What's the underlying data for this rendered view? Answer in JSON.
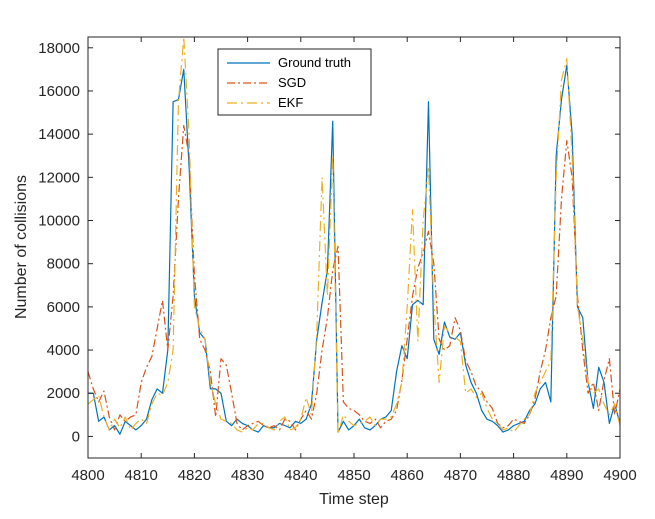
{
  "chart_data": {
    "type": "line",
    "title": "",
    "xlabel": "Time step",
    "ylabel": "Number of collisions",
    "xlim": [
      4800,
      4900
    ],
    "ylim": [
      -1000,
      18500
    ],
    "x_ticks": [
      4800,
      4810,
      4820,
      4830,
      4840,
      4850,
      4860,
      4870,
      4880,
      4890,
      4900
    ],
    "y_ticks": [
      0,
      2000,
      4000,
      6000,
      8000,
      10000,
      12000,
      14000,
      16000,
      18000
    ],
    "x_tick_labels": [
      "4800",
      "4810",
      "4820",
      "4830",
      "4840",
      "4850",
      "4860",
      "4870",
      "4880",
      "4890",
      "4900"
    ],
    "y_tick_labels": [
      "0",
      "2000",
      "4000",
      "6000",
      "8000",
      "10000",
      "12000",
      "14000",
      "16000",
      "18000"
    ],
    "legend_position": "top-center",
    "x": [
      4800,
      4801,
      4802,
      4803,
      4804,
      4805,
      4806,
      4807,
      4808,
      4809,
      4810,
      4811,
      4812,
      4813,
      4814,
      4815,
      4816,
      4817,
      4818,
      4819,
      4820,
      4821,
      4822,
      4823,
      4824,
      4825,
      4826,
      4827,
      4828,
      4829,
      4830,
      4831,
      4832,
      4833,
      4834,
      4835,
      4836,
      4837,
      4838,
      4839,
      4840,
      4841,
      4842,
      4843,
      4844,
      4845,
      4846,
      4847,
      4848,
      4849,
      4850,
      4851,
      4852,
      4853,
      4854,
      4855,
      4856,
      4857,
      4858,
      4859,
      4860,
      4861,
      4862,
      4863,
      4864,
      4865,
      4866,
      4867,
      4868,
      4869,
      4870,
      4871,
      4872,
      4873,
      4874,
      4875,
      4876,
      4877,
      4878,
      4879,
      4880,
      4881,
      4882,
      4883,
      4884,
      4885,
      4886,
      4887,
      4888,
      4889,
      4890,
      4891,
      4892,
      4893,
      4894,
      4895,
      4896,
      4897,
      4898,
      4899,
      4900
    ],
    "series": [
      {
        "name": "Ground truth",
        "color": "#0072BD",
        "dash": "solid",
        "values": [
          2000,
          2000,
          700,
          900,
          300,
          500,
          100,
          700,
          500,
          300,
          500,
          800,
          1700,
          2200,
          2000,
          4000,
          15500,
          15600,
          17000,
          12500,
          6500,
          4800,
          4500,
          2200,
          2200,
          2000,
          700,
          500,
          800,
          600,
          500,
          300,
          200,
          500,
          400,
          400,
          600,
          500,
          400,
          700,
          600,
          800,
          1500,
          4500,
          6200,
          7700,
          14600,
          200,
          700,
          300,
          500,
          800,
          400,
          300,
          500,
          800,
          900,
          1200,
          3000,
          4200,
          3600,
          6100,
          6300,
          6100,
          15500,
          4500,
          3800,
          5300,
          4600,
          4500,
          4800,
          3300,
          2500,
          2000,
          1200,
          800,
          700,
          500,
          200,
          300,
          500,
          600,
          700,
          1200,
          1500,
          2200,
          2500,
          1600,
          13000,
          15600,
          17200,
          14000,
          6000,
          5500,
          2500,
          1300,
          3200,
          2500,
          600,
          1500,
          600
        ]
      },
      {
        "name": "SGD",
        "color": "#D95319",
        "dash": "8,3,2,3",
        "values": [
          3000,
          2200,
          1600,
          2100,
          900,
          300,
          1000,
          700,
          900,
          1000,
          2500,
          3200,
          3700,
          5000,
          6300,
          4000,
          6500,
          11000,
          14400,
          13000,
          7500,
          4500,
          4000,
          3000,
          900,
          3600,
          3300,
          2000,
          600,
          300,
          500,
          600,
          700,
          500,
          400,
          500,
          300,
          800,
          700,
          300,
          800,
          1200,
          800,
          2000,
          4000,
          5500,
          7700,
          8800,
          1600,
          1300,
          1200,
          1000,
          700,
          600,
          800,
          400,
          700,
          800,
          1200,
          2600,
          4500,
          6500,
          7800,
          8500,
          9500,
          8000,
          4500,
          4000,
          4200,
          5500,
          4900,
          3500,
          3000,
          2300,
          2100,
          1600,
          1300,
          600,
          400,
          500,
          800,
          700,
          600,
          1000,
          1700,
          3000,
          4000,
          5500,
          6500,
          11000,
          13700,
          12000,
          6500,
          4000,
          2000,
          2500,
          1200,
          2600,
          3600,
          1000,
          2200
        ]
      },
      {
        "name": "EKF",
        "color": "#EDB120",
        "dash": "10,4,2,4",
        "values": [
          1500,
          1700,
          1900,
          900,
          300,
          800,
          400,
          900,
          300,
          600,
          800,
          600,
          1500,
          2000,
          1900,
          2500,
          4000,
          15500,
          18500,
          14000,
          6000,
          5000,
          4500,
          2500,
          1500,
          800,
          700,
          600,
          300,
          200,
          400,
          300,
          600,
          600,
          400,
          300,
          700,
          900,
          300,
          400,
          800,
          1800,
          1000,
          4800,
          12000,
          6500,
          13000,
          100,
          1000,
          700,
          500,
          600,
          700,
          900,
          500,
          800,
          800,
          900,
          1500,
          2500,
          6000,
          10500,
          4400,
          10000,
          12500,
          6200,
          2500,
          5100,
          4800,
          4600,
          4400,
          2000,
          2200,
          1800,
          2000,
          1300,
          800,
          600,
          300,
          400,
          200,
          500,
          800,
          1000,
          2000,
          2500,
          3000,
          3500,
          12000,
          16500,
          17500,
          13000,
          6000,
          4500,
          2500,
          2000,
          2200,
          1500,
          1000,
          1500,
          500
        ]
      }
    ]
  }
}
